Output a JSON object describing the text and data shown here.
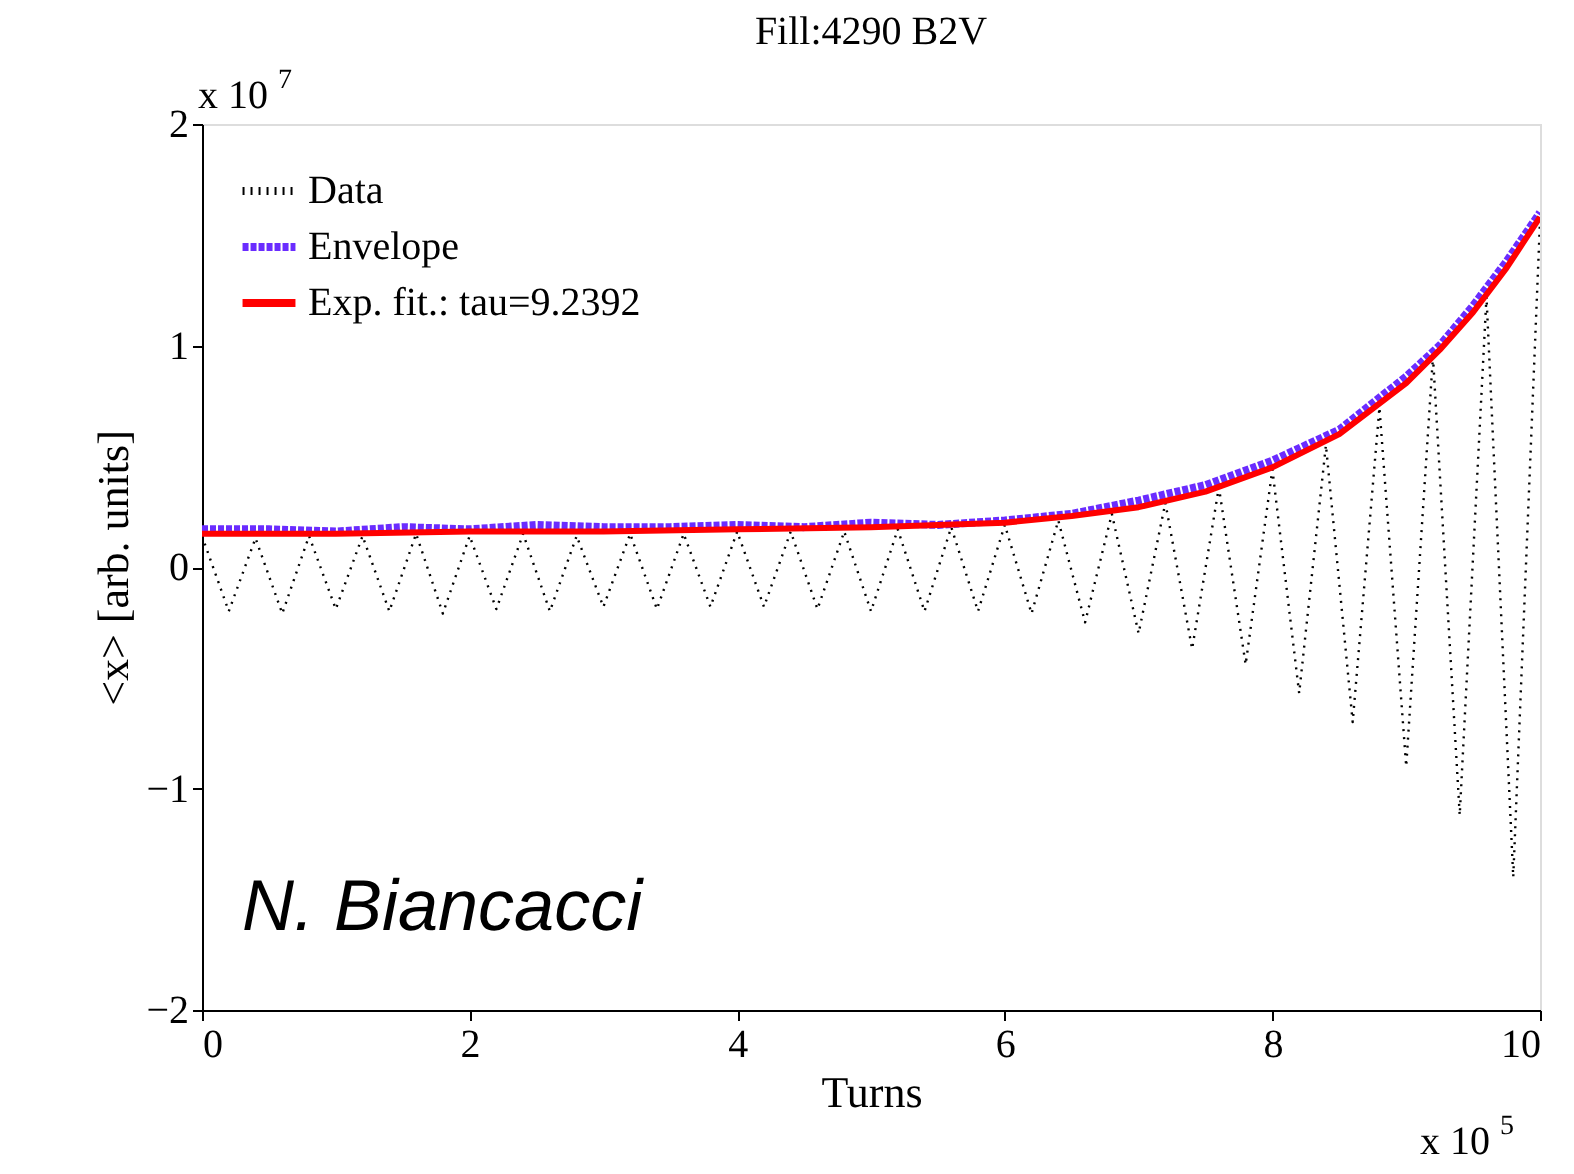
{
  "chart_data": {
    "type": "line",
    "title": "Fill:4290 B2V",
    "xlabel": "Turns",
    "ylabel": "<x> [arb. units]",
    "xlim": [
      0,
      10
    ],
    "xticks": [
      0,
      2,
      4,
      6,
      8,
      10
    ],
    "ylim": [
      -2,
      2
    ],
    "yticks": [
      -2,
      -1,
      0,
      1,
      2
    ],
    "grid": false,
    "legend": "top left",
    "annotations": [
      "x 10$^{7}$",
      "x 10$^{5}$",
      "N. Biancacci"
    ],
    "series": [
      {
        "name": "Data",
        "color": "#000000",
        "line_style": "dotted",
        "x": [
          0,
          0.2,
          0.4,
          0.6,
          0.8,
          1.0,
          1.2,
          1.4,
          1.6,
          1.8,
          2.0,
          2.2,
          2.4,
          2.6,
          2.8,
          3.0,
          3.2,
          3.4,
          3.6,
          3.8,
          4.0,
          4.2,
          4.4,
          4.6,
          4.8,
          5.0,
          5.2,
          5.4,
          5.6,
          5.8,
          6.0,
          6.2,
          6.4,
          6.6,
          6.8,
          7.0,
          7.2,
          7.4,
          7.6,
          7.8,
          8.0,
          8.2,
          8.4,
          8.6,
          8.8,
          9.0,
          9.2,
          9.4,
          9.6,
          9.8,
          10
        ],
        "values": [
          0.14,
          -0.2,
          0.13,
          -0.21,
          0.14,
          -0.19,
          0.14,
          -0.2,
          0.15,
          -0.21,
          0.14,
          -0.19,
          0.15,
          -0.2,
          0.14,
          -0.18,
          0.15,
          -0.19,
          0.15,
          -0.18,
          0.16,
          -0.18,
          0.16,
          -0.19,
          0.16,
          -0.2,
          0.17,
          -0.2,
          0.18,
          -0.2,
          0.19,
          -0.21,
          0.21,
          -0.25,
          0.24,
          -0.3,
          0.29,
          -0.37,
          0.36,
          -0.44,
          0.44,
          -0.57,
          0.55,
          -0.7,
          0.72,
          -0.9,
          0.95,
          -1.12,
          1.22,
          -1.4,
          1.56
        ]
      },
      {
        "name": "Envelope",
        "color": "#6a2cff",
        "line_style": "dashed",
        "x": [
          0,
          0.5,
          1,
          1.5,
          2,
          2.5,
          3,
          3.5,
          4,
          4.5,
          5,
          5.5,
          6,
          6.5,
          7,
          7.5,
          8,
          8.5,
          9,
          9.25,
          9.5,
          9.75,
          10
        ],
        "values": [
          0.17,
          0.17,
          0.16,
          0.18,
          0.17,
          0.19,
          0.18,
          0.18,
          0.19,
          0.18,
          0.2,
          0.19,
          0.21,
          0.24,
          0.3,
          0.37,
          0.48,
          0.62,
          0.86,
          1.0,
          1.18,
          1.38,
          1.6
        ]
      },
      {
        "name": "Exp. fit.: tau=9.2392",
        "color": "#ff0000",
        "line_style": "solid",
        "x": [
          0,
          1,
          2,
          3,
          4,
          5,
          6,
          6.5,
          7,
          7.5,
          8,
          8.5,
          9,
          9.25,
          9.5,
          9.75,
          10
        ],
        "values": [
          0.15,
          0.15,
          0.16,
          0.16,
          0.17,
          0.18,
          0.2,
          0.23,
          0.27,
          0.34,
          0.45,
          0.6,
          0.83,
          0.98,
          1.15,
          1.35,
          1.58
        ]
      }
    ]
  }
}
